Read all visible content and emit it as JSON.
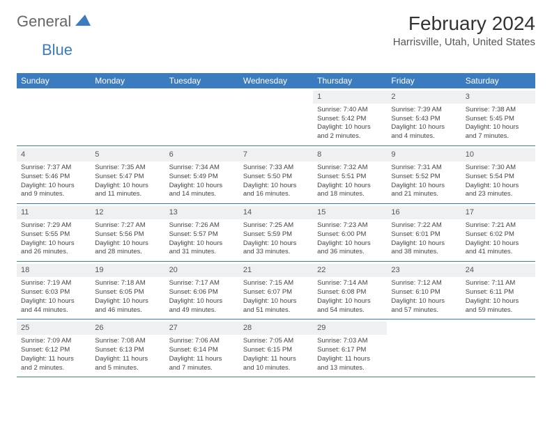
{
  "logo": {
    "text1": "General",
    "text2": "Blue"
  },
  "title": "February 2024",
  "location": "Harrisville, Utah, United States",
  "colors": {
    "header_bg": "#3b7bbf",
    "header_text": "#ffffff",
    "daynum_bg": "#eef0f1",
    "border": "#3b7bbf",
    "text": "#444444",
    "logo_gray": "#666666",
    "logo_blue": "#3b7bbf"
  },
  "typography": {
    "title_fontsize": 28,
    "location_fontsize": 15,
    "header_fontsize": 12,
    "cell_fontsize": 9.5
  },
  "day_names": [
    "Sunday",
    "Monday",
    "Tuesday",
    "Wednesday",
    "Thursday",
    "Friday",
    "Saturday"
  ],
  "weeks": [
    [
      {
        "empty": true
      },
      {
        "empty": true
      },
      {
        "empty": true
      },
      {
        "empty": true
      },
      {
        "num": "1",
        "sunrise": "7:40 AM",
        "sunset": "5:42 PM",
        "daylight": "10 hours and 2 minutes."
      },
      {
        "num": "2",
        "sunrise": "7:39 AM",
        "sunset": "5:43 PM",
        "daylight": "10 hours and 4 minutes."
      },
      {
        "num": "3",
        "sunrise": "7:38 AM",
        "sunset": "5:45 PM",
        "daylight": "10 hours and 7 minutes."
      }
    ],
    [
      {
        "num": "4",
        "sunrise": "7:37 AM",
        "sunset": "5:46 PM",
        "daylight": "10 hours and 9 minutes."
      },
      {
        "num": "5",
        "sunrise": "7:35 AM",
        "sunset": "5:47 PM",
        "daylight": "10 hours and 11 minutes."
      },
      {
        "num": "6",
        "sunrise": "7:34 AM",
        "sunset": "5:49 PM",
        "daylight": "10 hours and 14 minutes."
      },
      {
        "num": "7",
        "sunrise": "7:33 AM",
        "sunset": "5:50 PM",
        "daylight": "10 hours and 16 minutes."
      },
      {
        "num": "8",
        "sunrise": "7:32 AM",
        "sunset": "5:51 PM",
        "daylight": "10 hours and 18 minutes."
      },
      {
        "num": "9",
        "sunrise": "7:31 AM",
        "sunset": "5:52 PM",
        "daylight": "10 hours and 21 minutes."
      },
      {
        "num": "10",
        "sunrise": "7:30 AM",
        "sunset": "5:54 PM",
        "daylight": "10 hours and 23 minutes."
      }
    ],
    [
      {
        "num": "11",
        "sunrise": "7:29 AM",
        "sunset": "5:55 PM",
        "daylight": "10 hours and 26 minutes."
      },
      {
        "num": "12",
        "sunrise": "7:27 AM",
        "sunset": "5:56 PM",
        "daylight": "10 hours and 28 minutes."
      },
      {
        "num": "13",
        "sunrise": "7:26 AM",
        "sunset": "5:57 PM",
        "daylight": "10 hours and 31 minutes."
      },
      {
        "num": "14",
        "sunrise": "7:25 AM",
        "sunset": "5:59 PM",
        "daylight": "10 hours and 33 minutes."
      },
      {
        "num": "15",
        "sunrise": "7:23 AM",
        "sunset": "6:00 PM",
        "daylight": "10 hours and 36 minutes."
      },
      {
        "num": "16",
        "sunrise": "7:22 AM",
        "sunset": "6:01 PM",
        "daylight": "10 hours and 38 minutes."
      },
      {
        "num": "17",
        "sunrise": "7:21 AM",
        "sunset": "6:02 PM",
        "daylight": "10 hours and 41 minutes."
      }
    ],
    [
      {
        "num": "18",
        "sunrise": "7:19 AM",
        "sunset": "6:03 PM",
        "daylight": "10 hours and 44 minutes."
      },
      {
        "num": "19",
        "sunrise": "7:18 AM",
        "sunset": "6:05 PM",
        "daylight": "10 hours and 46 minutes."
      },
      {
        "num": "20",
        "sunrise": "7:17 AM",
        "sunset": "6:06 PM",
        "daylight": "10 hours and 49 minutes."
      },
      {
        "num": "21",
        "sunrise": "7:15 AM",
        "sunset": "6:07 PM",
        "daylight": "10 hours and 51 minutes."
      },
      {
        "num": "22",
        "sunrise": "7:14 AM",
        "sunset": "6:08 PM",
        "daylight": "10 hours and 54 minutes."
      },
      {
        "num": "23",
        "sunrise": "7:12 AM",
        "sunset": "6:10 PM",
        "daylight": "10 hours and 57 minutes."
      },
      {
        "num": "24",
        "sunrise": "7:11 AM",
        "sunset": "6:11 PM",
        "daylight": "10 hours and 59 minutes."
      }
    ],
    [
      {
        "num": "25",
        "sunrise": "7:09 AM",
        "sunset": "6:12 PM",
        "daylight": "11 hours and 2 minutes."
      },
      {
        "num": "26",
        "sunrise": "7:08 AM",
        "sunset": "6:13 PM",
        "daylight": "11 hours and 5 minutes."
      },
      {
        "num": "27",
        "sunrise": "7:06 AM",
        "sunset": "6:14 PM",
        "daylight": "11 hours and 7 minutes."
      },
      {
        "num": "28",
        "sunrise": "7:05 AM",
        "sunset": "6:15 PM",
        "daylight": "11 hours and 10 minutes."
      },
      {
        "num": "29",
        "sunrise": "7:03 AM",
        "sunset": "6:17 PM",
        "daylight": "11 hours and 13 minutes."
      },
      {
        "empty": true
      },
      {
        "empty": true
      }
    ]
  ],
  "labels": {
    "sunrise": "Sunrise:",
    "sunset": "Sunset:",
    "daylight": "Daylight:"
  }
}
